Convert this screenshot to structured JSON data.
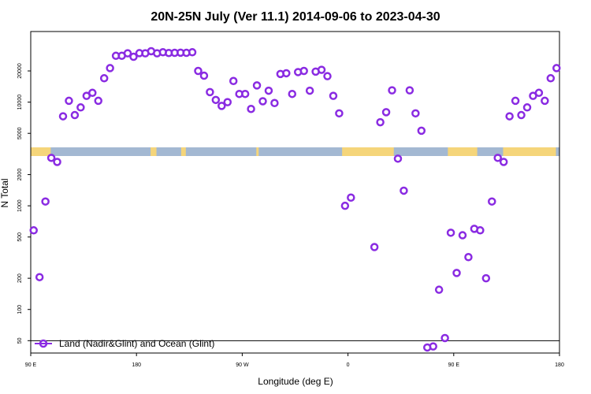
{
  "chart_data": {
    "type": "scatter",
    "title": "20N-25N July (Ver 11.1)   2014-09-06 to 2023-04-30",
    "xlabel": "Longitude (deg E)",
    "ylabel": "N Total",
    "yscale": "log",
    "x_ticks": [
      {
        "value": 90,
        "label": "90 E"
      },
      {
        "value": 180,
        "label": "180"
      },
      {
        "value": 270,
        "label": "90 W"
      },
      {
        "value": 360,
        "label": "0"
      },
      {
        "value": 450,
        "label": "90 E"
      },
      {
        "value": 540,
        "label": "180"
      }
    ],
    "xlim": [
      90,
      540
    ],
    "y_ticks": [
      {
        "value": 50,
        "label": "50"
      },
      {
        "value": 100,
        "label": "100"
      },
      {
        "value": 200,
        "label": "200"
      },
      {
        "value": 500,
        "label": "500"
      },
      {
        "value": 1000,
        "label": "1000"
      },
      {
        "value": 2000,
        "label": "2000"
      },
      {
        "value": 5000,
        "label": "5000"
      },
      {
        "value": 10000,
        "label": "10000"
      },
      {
        "value": 20000,
        "label": "20000"
      }
    ],
    "ylim": [
      38,
      48000
    ],
    "reference_line": 50,
    "map_strip": {
      "land_color": "#f5d57a",
      "ocean_color": "#a3b8d2"
    },
    "series": [
      {
        "name": "Land (Nadir&Glint) and Ocean (Glint)",
        "color": "#8a2be2",
        "x": [
          92.5,
          97.5,
          102.5,
          107.5,
          112.5,
          117.5,
          122.5,
          127.5,
          132.5,
          137.5,
          142.5,
          147.5,
          152.5,
          157.5,
          162.5,
          167.5,
          172.5,
          177.5,
          182.5,
          187.5,
          192.5,
          197.5,
          202.5,
          207.5,
          212.5,
          217.5,
          222.5,
          227.5,
          232.5,
          237.5,
          242.5,
          247.5,
          252.5,
          257.5,
          262.5,
          267.5,
          272.5,
          277.5,
          282.5,
          287.5,
          292.5,
          297.5,
          302.5,
          307.5,
          312.5,
          317.5,
          322.5,
          327.5,
          332.5,
          337.5,
          342.5,
          347.5,
          352.5,
          357.5,
          362.5,
          367.5,
          372.5,
          377.5,
          382.5,
          387.5,
          392.5,
          397.5,
          402.5,
          407.5,
          412.5,
          417.5,
          422.5,
          427.5,
          432.5,
          437.5,
          442.5,
          447.5,
          452.5,
          457.5,
          462.5,
          467.5,
          472.5,
          477.5,
          482.5,
          487.5,
          492.5,
          497.5,
          502.5,
          507.5,
          512.5,
          517.5,
          522.5,
          527.5,
          532.5,
          537.5
        ],
        "y": [
          580,
          205,
          1100,
          2900,
          2650,
          7300,
          10300,
          7500,
          8900,
          11500,
          12300,
          10300,
          17000,
          21300,
          28000,
          28000,
          29600,
          27400,
          29700,
          29600,
          31000,
          29600,
          30300,
          29800,
          29900,
          30000,
          29900,
          30300,
          20000,
          18000,
          12500,
          10500,
          9200,
          10000,
          16000,
          12000,
          12000,
          8600,
          14500,
          10200,
          12900,
          9800,
          18700,
          19000,
          12000,
          19500,
          20000,
          12900,
          19700,
          20500,
          17800,
          11500,
          7800,
          1000,
          1200,
          null,
          null,
          null,
          400,
          6400,
          8000,
          13000,
          2850,
          1400,
          13000,
          7800,
          5300,
          43,
          44,
          155,
          53,
          550,
          225,
          520,
          320,
          600,
          580,
          200,
          1100,
          2900,
          2650,
          7300,
          10300,
          7500,
          8900,
          11500,
          12300,
          10300,
          17000,
          21300
        ]
      }
    ]
  }
}
